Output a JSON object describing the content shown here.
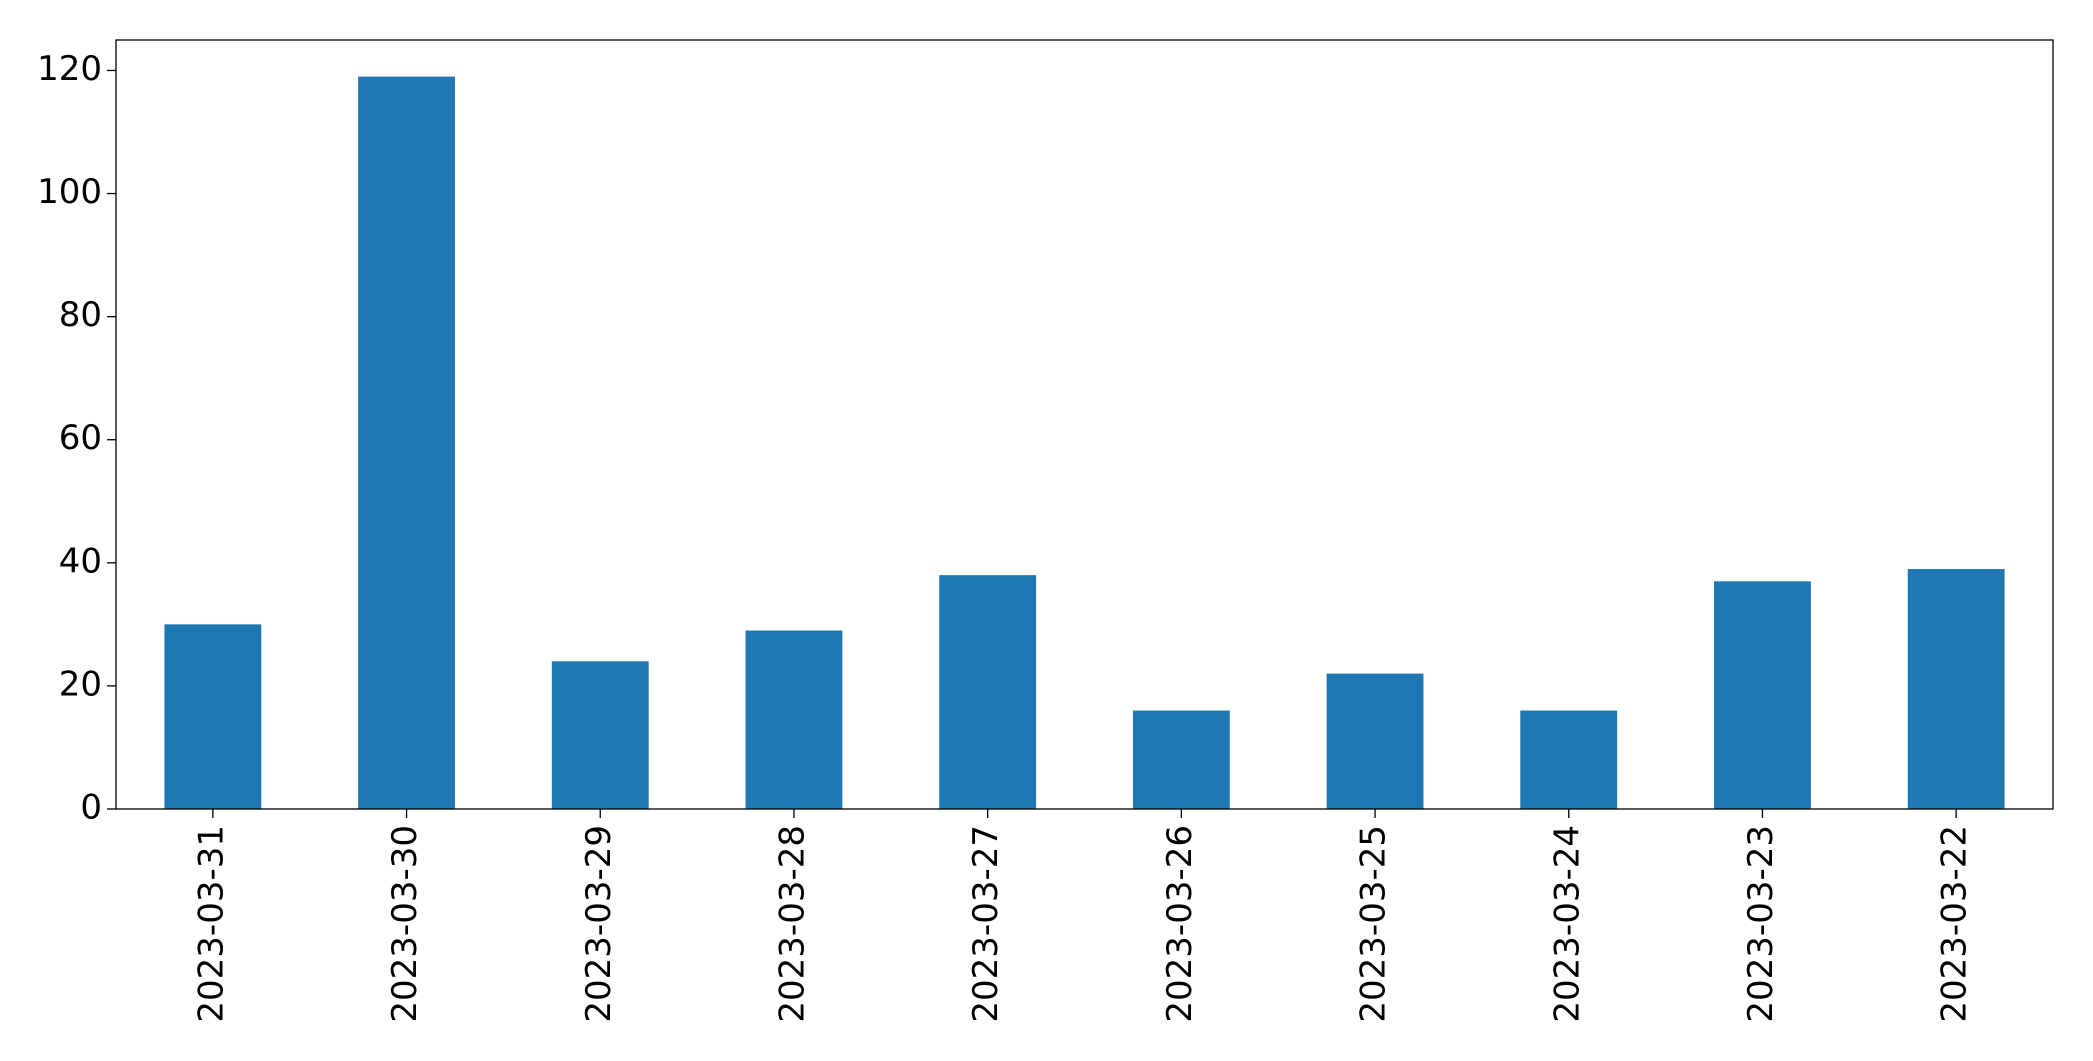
{
  "chart_data": {
    "type": "bar",
    "categories": [
      "2023-03-31",
      "2023-03-30",
      "2023-03-29",
      "2023-03-28",
      "2023-03-27",
      "2023-03-26",
      "2023-03-25",
      "2023-03-24",
      "2023-03-23",
      "2023-03-22"
    ],
    "values": [
      30,
      119,
      24,
      29,
      38,
      16,
      22,
      16,
      37,
      39
    ],
    "color": "#1f77b4",
    "ylim": [
      0,
      124.95
    ],
    "yticks": [
      0,
      20,
      40,
      60,
      80,
      100,
      120
    ],
    "grid": false
  }
}
